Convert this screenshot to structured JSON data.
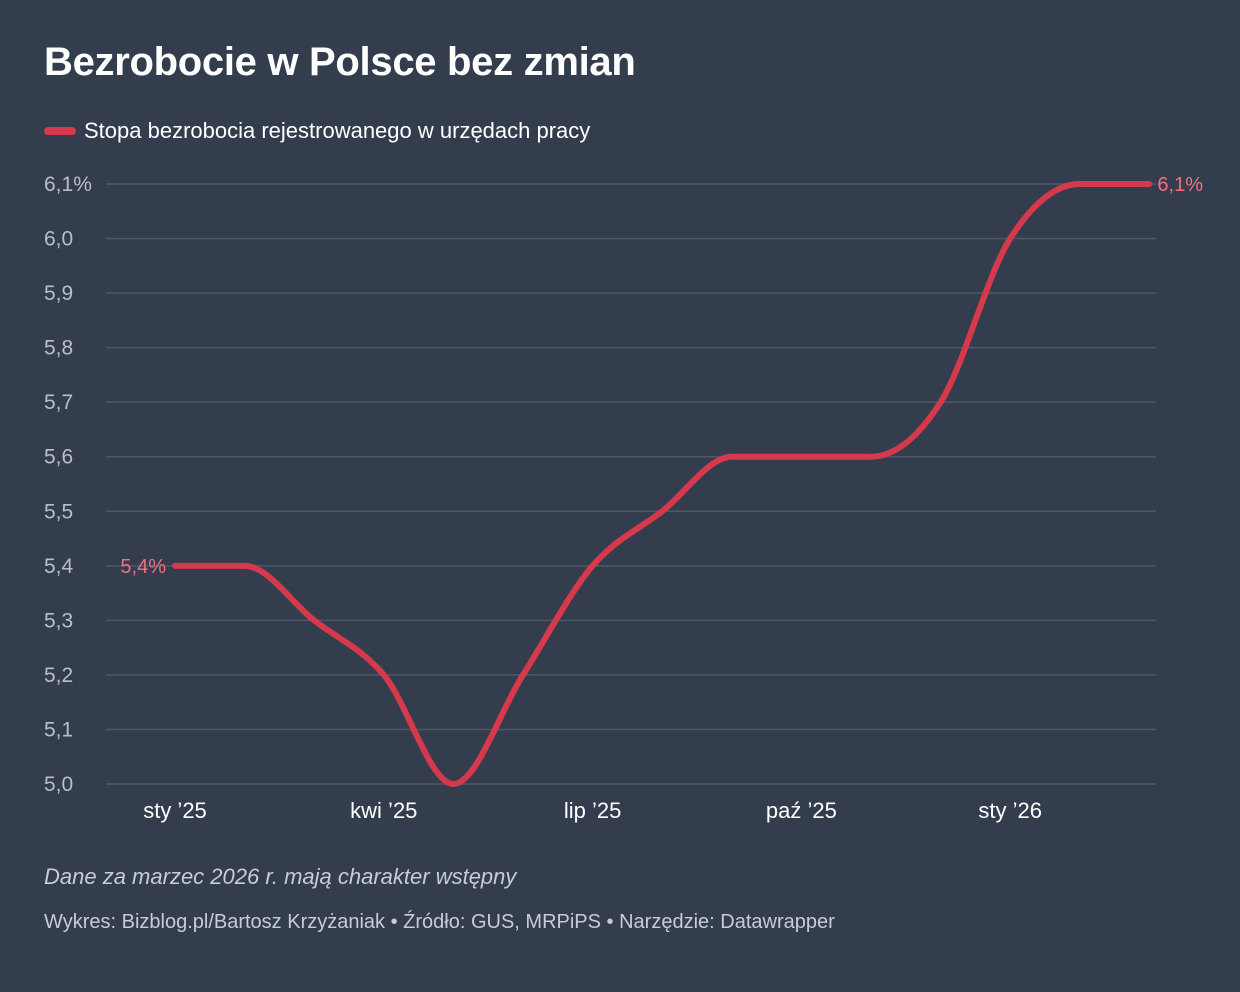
{
  "colors": {
    "background": "#343d4d",
    "line": "#d6394b",
    "label": "#f07080",
    "grid": "#4f5868",
    "muted_text": "#b9bec8"
  },
  "title": "Bezrobocie w Polsce bez zmian",
  "note": "Dane za marzec 2026 r. mają charakter wstępny",
  "footer": "Wykres: Bizblog.pl/Bartosz Krzyżaniak • Źródło: GUS, MRPiPS • Narzędzie: Datawrapper",
  "chart_data": {
    "type": "line",
    "title": "Bezrobocie w Polsce bez zmian",
    "xlabel": "",
    "ylabel": "",
    "x": [
      "2025-01",
      "2025-02",
      "2025-03",
      "2025-04",
      "2025-05",
      "2025-06",
      "2025-07",
      "2025-08",
      "2025-09",
      "2025-10",
      "2025-11",
      "2025-12",
      "2026-01",
      "2026-02",
      "2026-03"
    ],
    "series": [
      {
        "name": "Stopa bezrobocia rejestrowanego w urzędach pracy",
        "values": [
          5.4,
          5.4,
          5.3,
          5.2,
          5.0,
          5.2,
          5.4,
          5.5,
          5.6,
          5.6,
          5.6,
          5.7,
          6.0,
          6.1,
          6.1
        ]
      }
    ],
    "ylim": [
      5.0,
      6.1
    ],
    "yticks": [
      "6,1%",
      "6,0",
      "5,9",
      "5,8",
      "5,7",
      "5,6",
      "5,5",
      "5,4",
      "5,3",
      "5,2",
      "5,1",
      "5,0"
    ],
    "ytick_values": [
      6.1,
      6.0,
      5.9,
      5.8,
      5.7,
      5.6,
      5.5,
      5.4,
      5.3,
      5.2,
      5.1,
      5.0
    ],
    "xticks": [
      {
        "label": "sty ’25",
        "index": 0
      },
      {
        "label": "kwi ’25",
        "index": 3
      },
      {
        "label": "lip ’25",
        "index": 6
      },
      {
        "label": "paź ’25",
        "index": 9
      },
      {
        "label": "sty ’26",
        "index": 12
      }
    ],
    "start_label": "5,4%",
    "end_label": "6,1%",
    "grid": true,
    "legend_position": "top-left"
  }
}
